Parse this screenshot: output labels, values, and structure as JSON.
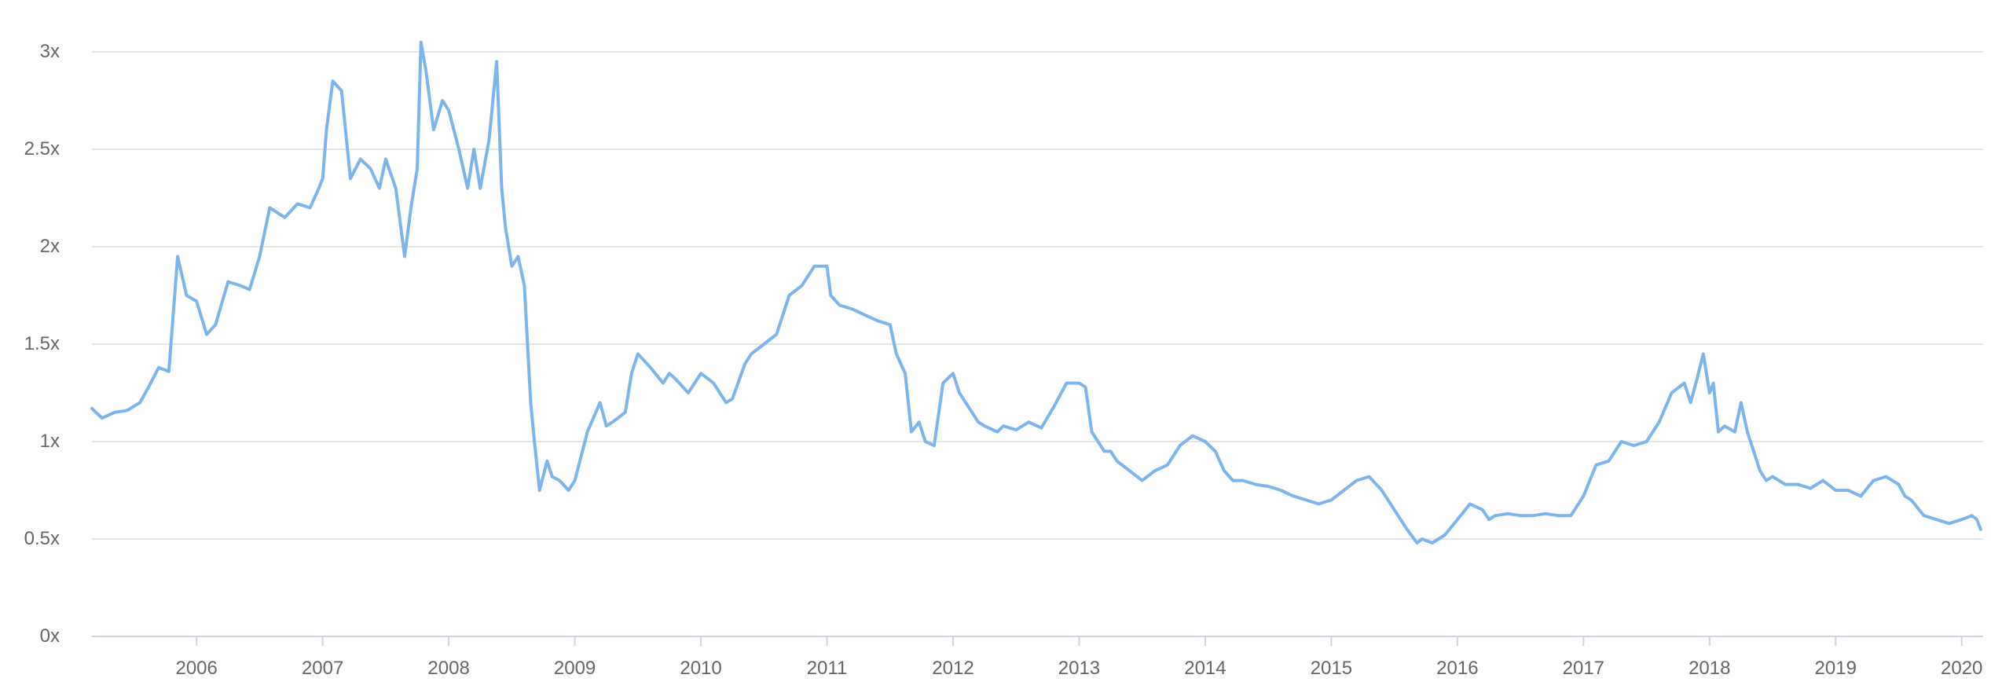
{
  "chart_data": {
    "type": "line",
    "title": "",
    "xlabel": "",
    "ylabel": "",
    "x_range": [
      2005.17,
      2020.17
    ],
    "ylim": [
      0,
      3
    ],
    "y_ticks": [
      0,
      0.5,
      1,
      1.5,
      2,
      2.5,
      3
    ],
    "y_tick_labels": [
      "0x",
      "0.5x",
      "1x",
      "1.5x",
      "2x",
      "2.5x",
      "3x"
    ],
    "x_ticks": [
      2006,
      2007,
      2008,
      2009,
      2010,
      2011,
      2012,
      2013,
      2014,
      2015,
      2016,
      2017,
      2018,
      2019,
      2020
    ],
    "x_tick_labels": [
      "2006",
      "2007",
      "2008",
      "2009",
      "2010",
      "2011",
      "2012",
      "2013",
      "2014",
      "2015",
      "2016",
      "2017",
      "2018",
      "2019",
      "2020"
    ],
    "grid": "horizontal",
    "legend": "none",
    "colors": {
      "line": "#7cb5ec",
      "grid": "#e6e6e6",
      "axis": "#ccd6eb",
      "tick_text": "#666666"
    },
    "series": [
      {
        "x": [
          2005.17,
          2005.25,
          2005.35,
          2005.45,
          2005.55,
          2005.62,
          2005.7,
          2005.78,
          2005.85,
          2005.92,
          2006.0,
          2006.08,
          2006.15,
          2006.25,
          2006.35,
          2006.42,
          2006.5,
          2006.58,
          2006.7,
          2006.8,
          2006.9,
          2006.97,
          2007.0,
          2007.03,
          2007.08,
          2007.15,
          2007.22,
          2007.3,
          2007.38,
          2007.45,
          2007.5,
          2007.58,
          2007.65,
          2007.7,
          2007.75,
          2007.78,
          2007.82,
          2007.88,
          2007.95,
          2008.0,
          2008.08,
          2008.15,
          2008.2,
          2008.25,
          2008.32,
          2008.38,
          2008.42,
          2008.45,
          2008.5,
          2008.55,
          2008.6,
          2008.65,
          2008.68,
          2008.72,
          2008.78,
          2008.82,
          2008.88,
          2008.95,
          2009.0,
          2009.1,
          2009.2,
          2009.25,
          2009.3,
          2009.4,
          2009.45,
          2009.5,
          2009.6,
          2009.7,
          2009.75,
          2009.8,
          2009.9,
          2010.0,
          2010.1,
          2010.2,
          2010.25,
          2010.35,
          2010.4,
          2010.5,
          2010.6,
          2010.7,
          2010.8,
          2010.9,
          2011.0,
          2011.03,
          2011.1,
          2011.2,
          2011.3,
          2011.4,
          2011.5,
          2011.55,
          2011.62,
          2011.67,
          2011.73,
          2011.78,
          2011.85,
          2011.92,
          2012.0,
          2012.05,
          2012.15,
          2012.2,
          2012.25,
          2012.35,
          2012.4,
          2012.5,
          2012.6,
          2012.7,
          2012.8,
          2012.9,
          2013.0,
          2013.05,
          2013.1,
          2013.2,
          2013.25,
          2013.3,
          2013.4,
          2013.5,
          2013.6,
          2013.7,
          2013.8,
          2013.9,
          2014.0,
          2014.08,
          2014.15,
          2014.22,
          2014.3,
          2014.4,
          2014.5,
          2014.6,
          2014.7,
          2014.8,
          2014.9,
          2015.0,
          2015.1,
          2015.2,
          2015.3,
          2015.4,
          2015.5,
          2015.6,
          2015.68,
          2015.72,
          2015.8,
          2015.9,
          2016.0,
          2016.1,
          2016.2,
          2016.25,
          2016.3,
          2016.4,
          2016.5,
          2016.6,
          2016.7,
          2016.8,
          2016.9,
          2017.0,
          2017.1,
          2017.2,
          2017.3,
          2017.4,
          2017.5,
          2017.6,
          2017.7,
          2017.8,
          2017.85,
          2017.9,
          2017.95,
          2018.0,
          2018.03,
          2018.07,
          2018.12,
          2018.2,
          2018.25,
          2018.3,
          2018.35,
          2018.4,
          2018.45,
          2018.5,
          2018.55,
          2018.6,
          2018.7,
          2018.8,
          2018.9,
          2019.0,
          2019.1,
          2019.2,
          2019.3,
          2019.4,
          2019.5,
          2019.55,
          2019.6,
          2019.7,
          2019.8,
          2019.9,
          2020.0,
          2020.08,
          2020.12,
          2020.15
        ],
        "values": [
          1.17,
          1.12,
          1.15,
          1.16,
          1.2,
          1.28,
          1.38,
          1.36,
          1.95,
          1.75,
          1.72,
          1.55,
          1.6,
          1.82,
          1.8,
          1.78,
          1.95,
          2.2,
          2.15,
          2.22,
          2.2,
          2.3,
          2.35,
          2.6,
          2.85,
          2.8,
          2.35,
          2.45,
          2.4,
          2.3,
          2.45,
          2.3,
          1.95,
          2.2,
          2.4,
          3.05,
          2.9,
          2.6,
          2.75,
          2.7,
          2.5,
          2.3,
          2.5,
          2.3,
          2.55,
          2.95,
          2.3,
          2.1,
          1.9,
          1.95,
          1.8,
          1.2,
          1.0,
          0.75,
          0.9,
          0.82,
          0.8,
          0.75,
          0.8,
          1.05,
          1.2,
          1.08,
          1.1,
          1.15,
          1.35,
          1.45,
          1.38,
          1.3,
          1.35,
          1.32,
          1.25,
          1.35,
          1.3,
          1.2,
          1.22,
          1.4,
          1.45,
          1.5,
          1.55,
          1.75,
          1.8,
          1.9,
          1.9,
          1.75,
          1.7,
          1.68,
          1.65,
          1.62,
          1.6,
          1.45,
          1.35,
          1.05,
          1.1,
          1.0,
          0.98,
          1.3,
          1.35,
          1.25,
          1.15,
          1.1,
          1.08,
          1.05,
          1.08,
          1.06,
          1.1,
          1.07,
          1.18,
          1.3,
          1.3,
          1.28,
          1.05,
          0.95,
          0.95,
          0.9,
          0.85,
          0.8,
          0.85,
          0.88,
          0.98,
          1.03,
          1.0,
          0.95,
          0.85,
          0.8,
          0.8,
          0.78,
          0.77,
          0.75,
          0.72,
          0.7,
          0.68,
          0.7,
          0.75,
          0.8,
          0.82,
          0.75,
          0.65,
          0.55,
          0.48,
          0.5,
          0.48,
          0.52,
          0.6,
          0.68,
          0.65,
          0.6,
          0.62,
          0.63,
          0.62,
          0.62,
          0.63,
          0.62,
          0.62,
          0.72,
          0.88,
          0.9,
          1.0,
          0.98,
          1.0,
          1.1,
          1.25,
          1.3,
          1.2,
          1.32,
          1.45,
          1.25,
          1.3,
          1.05,
          1.08,
          1.05,
          1.2,
          1.05,
          0.95,
          0.85,
          0.8,
          0.82,
          0.8,
          0.78,
          0.78,
          0.76,
          0.8,
          0.75,
          0.75,
          0.72,
          0.8,
          0.82,
          0.78,
          0.72,
          0.7,
          0.62,
          0.6,
          0.58,
          0.6,
          0.62,
          0.6,
          0.55
        ]
      }
    ]
  }
}
